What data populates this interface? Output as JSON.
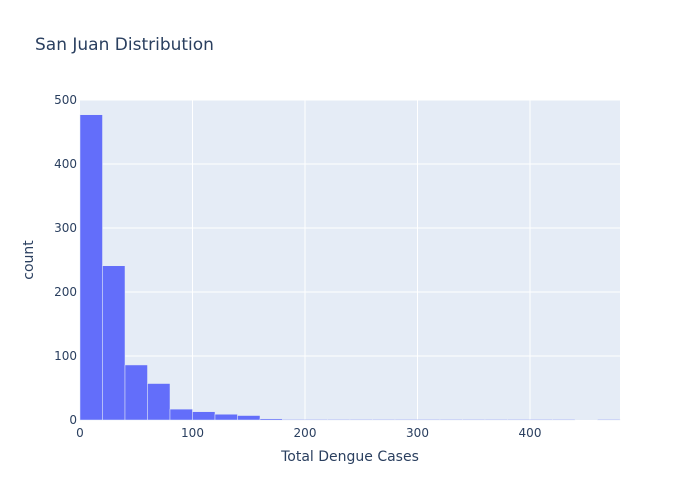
{
  "chart_data": {
    "type": "bar",
    "title": "San Juan Distribution",
    "xlabel": "Total Dengue Cases",
    "ylabel": "count",
    "bin_width": 20,
    "bins": [
      {
        "x0": 0,
        "x1": 20,
        "count": 477
      },
      {
        "x0": 20,
        "x1": 40,
        "count": 241
      },
      {
        "x0": 40,
        "x1": 60,
        "count": 86
      },
      {
        "x0": 60,
        "x1": 80,
        "count": 57
      },
      {
        "x0": 80,
        "x1": 100,
        "count": 17
      },
      {
        "x0": 100,
        "x1": 120,
        "count": 13
      },
      {
        "x0": 120,
        "x1": 140,
        "count": 9
      },
      {
        "x0": 140,
        "x1": 160,
        "count": 7
      },
      {
        "x0": 160,
        "x1": 180,
        "count": 2
      },
      {
        "x0": 180,
        "x1": 200,
        "count": 1
      },
      {
        "x0": 200,
        "x1": 220,
        "count": 1
      },
      {
        "x0": 220,
        "x1": 240,
        "count": 1
      },
      {
        "x0": 240,
        "x1": 260,
        "count": 1
      },
      {
        "x0": 260,
        "x1": 280,
        "count": 1
      },
      {
        "x0": 280,
        "x1": 300,
        "count": 1
      },
      {
        "x0": 300,
        "x1": 320,
        "count": 1
      },
      {
        "x0": 320,
        "x1": 340,
        "count": 1
      },
      {
        "x0": 340,
        "x1": 360,
        "count": 1
      },
      {
        "x0": 360,
        "x1": 380,
        "count": 1
      },
      {
        "x0": 380,
        "x1": 400,
        "count": 1
      },
      {
        "x0": 400,
        "x1": 420,
        "count": 1
      },
      {
        "x0": 420,
        "x1": 440,
        "count": 1
      },
      {
        "x0": 440,
        "x1": 460,
        "count": 0
      },
      {
        "x0": 460,
        "x1": 480,
        "count": 1
      }
    ],
    "xlim": [
      0,
      480
    ],
    "ylim": [
      0,
      500
    ],
    "xticks": [
      0,
      100,
      200,
      300,
      400
    ],
    "yticks": [
      0,
      100,
      200,
      300,
      400,
      500
    ],
    "grid": true,
    "colors": {
      "bar": "#636efa",
      "plot_bg": "#e5ecf6",
      "grid": "#ffffff",
      "text": "#2a3f5f"
    }
  }
}
